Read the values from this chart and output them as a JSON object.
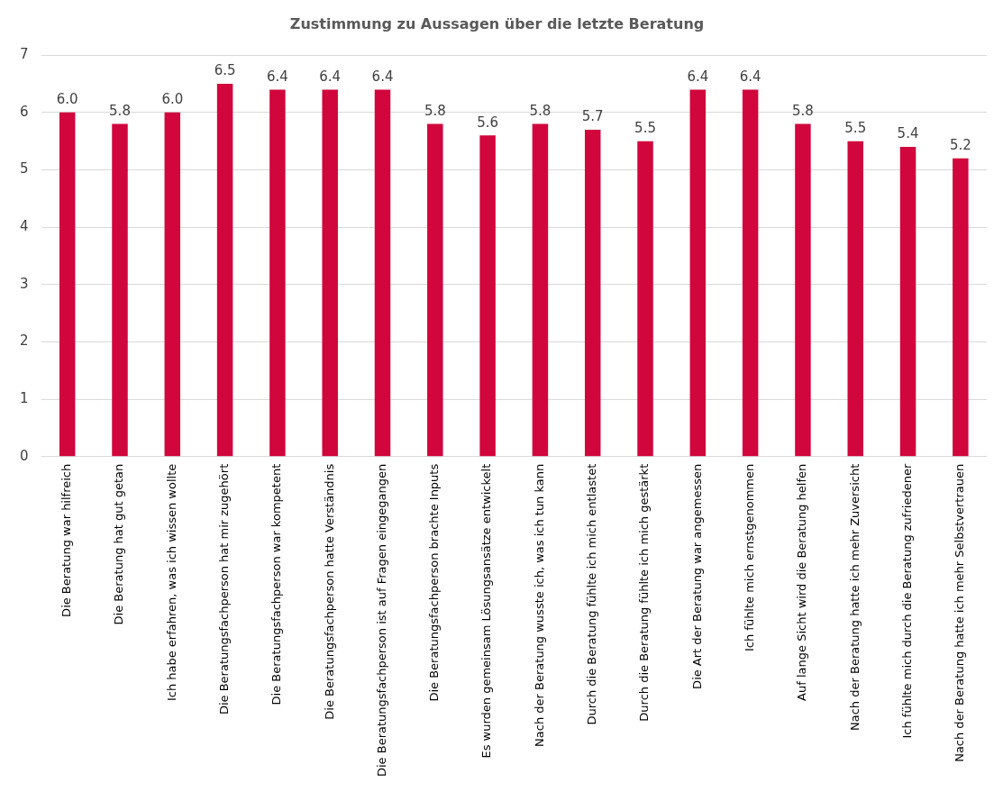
{
  "chart_data": {
    "type": "bar",
    "title": "Zustimmung zu Aussagen über die letzte Beratung",
    "categories": [
      "Die Beratung war hilfreich",
      "Die Beratung hat gut getan",
      "Ich habe erfahren, was ich wissen wollte",
      "Die Beratungsfachperson hat mir zugehört",
      "Die Beratungsfachperson war kompetent",
      "Die Beratungsfachperson hatte Verständnis",
      "Die Beratungsfachperson ist auf Fragen eingegangen",
      "Die Beratungsfachperson brachte Inputs",
      "Es wurden gemeinsam Lösungsansätze entwickelt",
      "Nach der Beratung wusste ich, was ich tun kann",
      "Durch die Beratung fühlte ich mich entlastet",
      "Durch die Beratung fühlte ich mich gestärkt",
      "Die Art der Beratung war angemessen",
      "Ich fühlte mich ernstgenommen",
      "Auf lange Sicht wird die Beratung helfen",
      "Nach der Beratung hatte ich mehr Zuversicht",
      "Ich fühlte mich durch die Beratung zufriedener",
      "Nach der Beratung hatte ich mehr Selbstvertrauen"
    ],
    "values": [
      6.0,
      5.8,
      6.0,
      6.5,
      6.4,
      6.4,
      6.4,
      5.8,
      5.6,
      5.8,
      5.7,
      5.5,
      6.4,
      6.4,
      5.8,
      5.5,
      5.4,
      5.2
    ],
    "value_labels": [
      "6.0",
      "5.8",
      "6.0",
      "6.5",
      "6.4",
      "6.4",
      "6.4",
      "5.8",
      "5.6",
      "5.8",
      "5.7",
      "5.5",
      "6.4",
      "6.4",
      "5.8",
      "5.5",
      "5.4",
      "5.2"
    ],
    "color": "#d0063c",
    "ylim": [
      0,
      7
    ],
    "yticks": [
      0,
      1,
      2,
      3,
      4,
      5,
      6,
      7
    ],
    "grid": "y",
    "legend": false
  }
}
